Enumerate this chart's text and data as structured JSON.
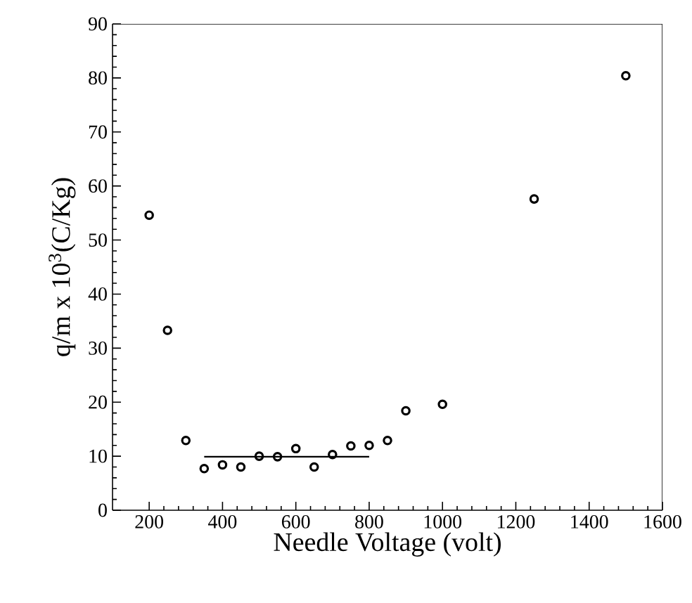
{
  "chart_data": {
    "type": "scatter",
    "xlabel": "Needle Voltage (volt)",
    "ylabel": "q/m x 10$^{3}$(C/Kg)",
    "xlim": [
      100,
      1600
    ],
    "xticks": [
      200,
      400,
      600,
      800,
      1000,
      1200,
      1400,
      1600
    ],
    "ylim": [
      0,
      90
    ],
    "yticks": [
      0,
      10,
      20,
      30,
      40,
      50,
      60,
      70,
      80,
      90
    ],
    "marker": "circle",
    "grid": false,
    "series": [
      {
        "color": "#000000",
        "x": [
          200,
          250,
          300,
          350,
          400,
          450,
          500,
          550,
          600,
          650,
          700,
          750,
          800,
          850,
          900,
          1000,
          1250,
          1500
        ],
        "values": [
          54.6,
          33.3,
          12.9,
          7.7,
          8.4,
          8.0,
          10.0,
          9.9,
          11.4,
          8.0,
          10.3,
          11.9,
          12.0,
          12.9,
          18.4,
          19.6,
          57.6,
          80.4
        ]
      },
      {
        "type": "line",
        "marker": "none",
        "color": "#000000",
        "x": [
          350,
          800
        ],
        "values": [
          9.9,
          9.9
        ]
      }
    ]
  }
}
